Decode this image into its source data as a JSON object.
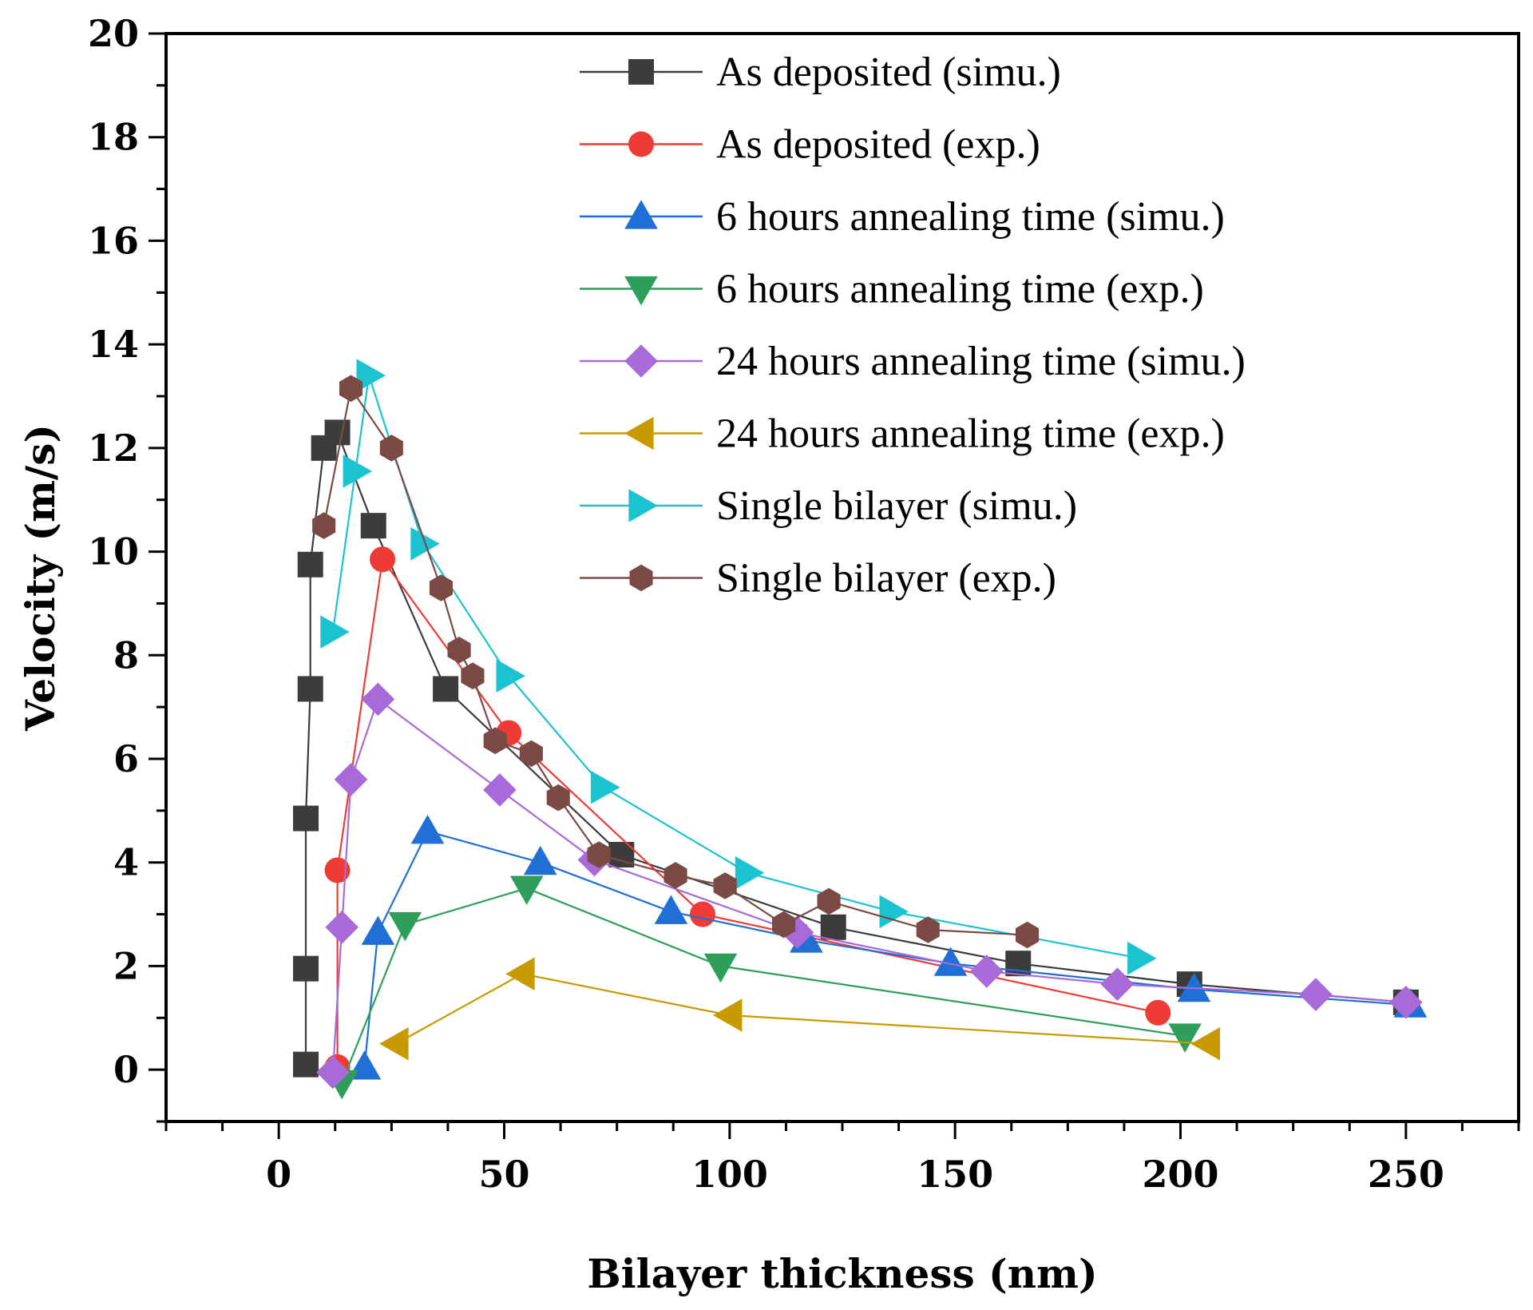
{
  "chart_data": {
    "type": "line",
    "xlabel": "Bilayer thickness (nm)",
    "ylabel": "Velocity (m/s)",
    "xlim": [
      -25,
      275
    ],
    "ylim": [
      -1,
      20
    ],
    "xticks": [
      0,
      50,
      100,
      150,
      200,
      250
    ],
    "xtick_labels": [
      "0",
      "50",
      "100",
      "150",
      "200",
      "250"
    ],
    "yticks": [
      0,
      2,
      4,
      6,
      8,
      10,
      12,
      14,
      16,
      18,
      20
    ],
    "ytick_labels": [
      "0",
      "2",
      "4",
      "6",
      "8",
      "10",
      "12",
      "14",
      "16",
      "18",
      "20"
    ],
    "grid": false,
    "legend_position": "top-right",
    "series": [
      {
        "name": "As deposited (simu.)",
        "color": "#3c3c3c",
        "marker": "square",
        "x": [
          6,
          6,
          6,
          7,
          7,
          10,
          13,
          21,
          37,
          76,
          123,
          164,
          202,
          250
        ],
        "y": [
          0.1,
          1.95,
          4.85,
          7.35,
          9.75,
          12.0,
          12.3,
          10.5,
          7.35,
          4.15,
          2.75,
          2.05,
          1.65,
          1.3
        ]
      },
      {
        "name": "As deposited (exp.)",
        "color": "#ef3b36",
        "marker": "circle",
        "x": [
          13,
          13,
          23,
          51,
          94,
          195
        ],
        "y": [
          0.05,
          3.85,
          9.85,
          6.5,
          3.0,
          1.1
        ]
      },
      {
        "name": "6 hours annealing time (simu.)",
        "color": "#1f6fd6",
        "marker": "triangle-up",
        "x": [
          19,
          22,
          33,
          58,
          87,
          117,
          149,
          203,
          251
        ],
        "y": [
          0.05,
          2.65,
          4.6,
          4.0,
          3.05,
          2.5,
          2.05,
          1.55,
          1.25
        ]
      },
      {
        "name": "6 hours annealing time (exp.)",
        "color": "#2e9e5b",
        "marker": "triangle-down",
        "x": [
          14,
          28,
          55,
          98,
          201
        ],
        "y": [
          -0.25,
          2.8,
          3.5,
          2.0,
          0.65
        ]
      },
      {
        "name": "24 hours annealing time (simu.)",
        "color": "#a86ad8",
        "marker": "diamond",
        "x": [
          12,
          14,
          16,
          22,
          49,
          70,
          115,
          157,
          186,
          230,
          250
        ],
        "y": [
          -0.05,
          2.75,
          5.6,
          7.15,
          5.4,
          4.05,
          2.65,
          1.9,
          1.65,
          1.45,
          1.3
        ]
      },
      {
        "name": "24 hours annealing time (exp.)",
        "color": "#c99a00",
        "marker": "triangle-left",
        "x": [
          26,
          54,
          100,
          206
        ],
        "y": [
          0.5,
          1.85,
          1.05,
          0.5
        ]
      },
      {
        "name": "Single bilayer (simu.)",
        "color": "#1bc3d1",
        "marker": "triangle-right",
        "x": [
          12,
          17,
          20,
          32,
          51,
          72,
          104,
          136,
          191
        ],
        "y": [
          8.45,
          11.55,
          13.4,
          10.15,
          7.6,
          5.45,
          3.8,
          3.05,
          2.15
        ]
      },
      {
        "name": "Single bilayer (exp.)",
        "color": "#7b4a45",
        "marker": "hexagon",
        "x": [
          10,
          16,
          25,
          36,
          40,
          43,
          48,
          56,
          62,
          71,
          88,
          99,
          112,
          122,
          144,
          166
        ],
        "y": [
          10.5,
          13.15,
          12.0,
          9.3,
          8.1,
          7.6,
          6.35,
          6.1,
          5.25,
          4.15,
          3.75,
          3.55,
          2.8,
          3.25,
          2.7,
          2.6
        ]
      }
    ]
  }
}
